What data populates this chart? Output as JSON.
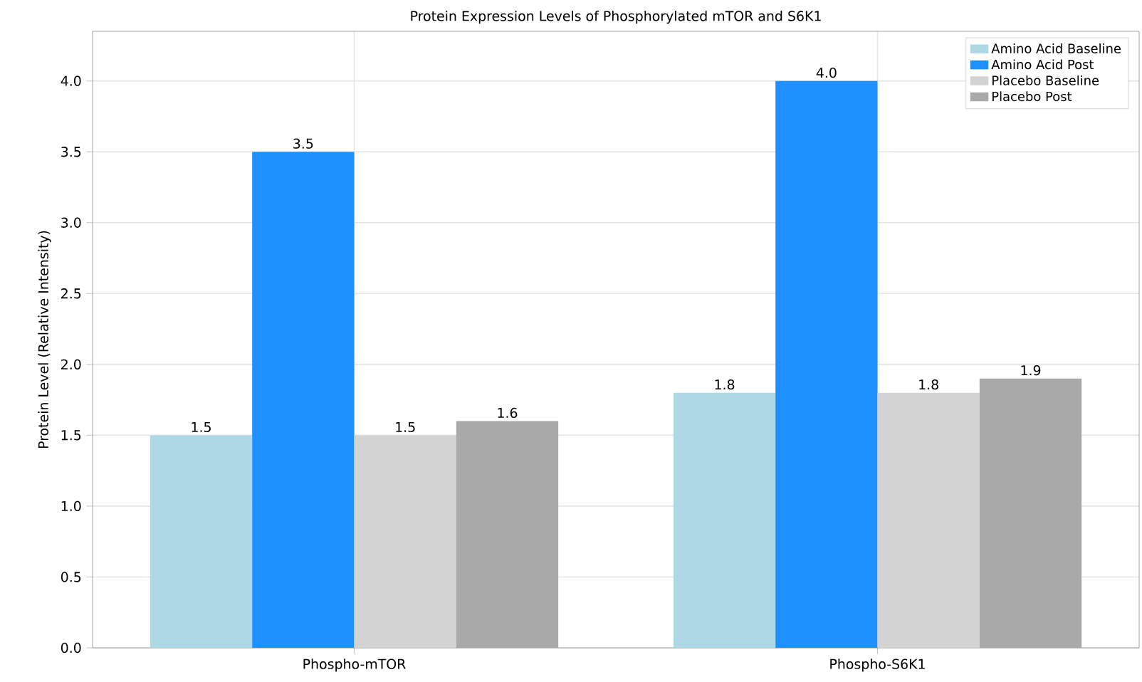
{
  "chart_data": {
    "type": "bar",
    "title": "Protein Expression Levels of Phosphorylated mTOR and S6K1",
    "ylabel": "Protein Level (Relative Intensity)",
    "categories": [
      "Phospho-mTOR",
      "Phospho-S6K1"
    ],
    "series": [
      {
        "name": "Amino Acid Baseline",
        "color": "#add8e6",
        "values": [
          1.5,
          1.8
        ],
        "value_labels": [
          "1.5",
          "1.8"
        ]
      },
      {
        "name": "Amino Acid Post",
        "color": "#1e90ff",
        "values": [
          3.5,
          4.0
        ],
        "value_labels": [
          "3.5",
          "4.0"
        ]
      },
      {
        "name": "Placebo Baseline",
        "color": "#d3d3d3",
        "values": [
          1.5,
          1.8
        ],
        "value_labels": [
          "1.5",
          "1.8"
        ]
      },
      {
        "name": "Placebo Post",
        "color": "#a9a9a9",
        "values": [
          1.6,
          1.9
        ],
        "value_labels": [
          "1.6",
          "1.9"
        ]
      }
    ],
    "ylim": [
      0,
      4.35
    ],
    "yticks": [
      {
        "value": 0,
        "label": "0.0"
      },
      {
        "value": 0.5,
        "label": "0.5"
      },
      {
        "value": 1,
        "label": "1.0"
      },
      {
        "value": 1.5,
        "label": "1.5"
      },
      {
        "value": 2,
        "label": "2.0"
      },
      {
        "value": 2.5,
        "label": "2.5"
      },
      {
        "value": 3,
        "label": "3.0"
      },
      {
        "value": 3.5,
        "label": "3.5"
      },
      {
        "value": 4,
        "label": "4.0"
      }
    ],
    "grid": true,
    "legend": "top right"
  }
}
